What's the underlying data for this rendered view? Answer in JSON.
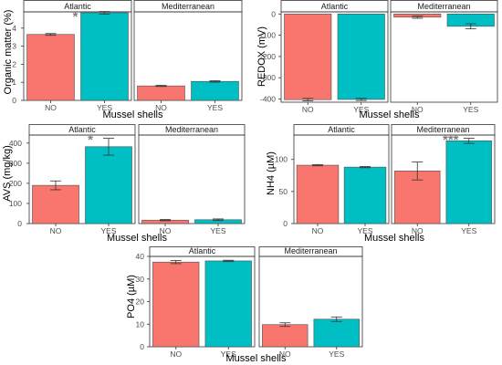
{
  "figure": {
    "colors": {
      "NO": "#F8766D",
      "YES": "#00BFC4",
      "panel_border": "#333333",
      "strip_fill": "#ffffff",
      "errorbar": "#333333",
      "significance": "#7f7f7f"
    }
  },
  "chart_data": [
    {
      "id": "organic-matter",
      "type": "bar",
      "ylabel": "Organic matter (%)",
      "xlabel": "Mussel shells",
      "ylim": [
        0,
        4.9
      ],
      "yticks": [
        0,
        1,
        2,
        3,
        4
      ],
      "categories": [
        "NO",
        "YES"
      ],
      "facets": [
        {
          "name": "Atlantic",
          "values": [
            3.65,
            4.85
          ],
          "errors": [
            0.05,
            0.07
          ],
          "significance": "*"
        },
        {
          "name": "Mediterranean",
          "values": [
            0.8,
            1.05
          ],
          "errors": [
            0.03,
            0.04
          ],
          "significance": ""
        }
      ],
      "grid": false
    },
    {
      "id": "redox",
      "type": "bar",
      "ylabel": "REDOX (mV)",
      "xlabel": "Mussel shells",
      "ylim": [
        -415,
        10
      ],
      "yticks": [
        0,
        -100,
        -200,
        -300,
        -400
      ],
      "categories": [
        "NO",
        "YES"
      ],
      "facets": [
        {
          "name": "Atlantic",
          "values": [
            -403,
            -402
          ],
          "errors": [
            6,
            5
          ],
          "significance": ""
        },
        {
          "name": "Mediterranean",
          "values": [
            -15,
            -58
          ],
          "errors": [
            5,
            12
          ],
          "significance": ""
        }
      ],
      "grid": false
    },
    {
      "id": "avs",
      "type": "bar",
      "ylabel": "AVS (mg/kg)",
      "xlabel": "Mussel shells",
      "ylim": [
        0,
        440
      ],
      "yticks": [
        0,
        100,
        200,
        300,
        400
      ],
      "categories": [
        "NO",
        "YES"
      ],
      "facets": [
        {
          "name": "Atlantic",
          "values": [
            190,
            382
          ],
          "errors": [
            22,
            42
          ],
          "significance": "*"
        },
        {
          "name": "Mediterranean",
          "values": [
            17,
            19
          ],
          "errors": [
            3,
            4
          ],
          "significance": ""
        }
      ],
      "grid": false
    },
    {
      "id": "nh4",
      "type": "bar",
      "ylabel": "NH4 (µM)",
      "xlabel": "Mussel shells",
      "ylim": [
        0,
        138
      ],
      "yticks": [
        0,
        50,
        100
      ],
      "categories": [
        "NO",
        "YES"
      ],
      "facets": [
        {
          "name": "Atlantic",
          "values": [
            91,
            88
          ],
          "errors": [
            1,
            1
          ],
          "significance": ""
        },
        {
          "name": "Mediterranean",
          "values": [
            82,
            129
          ],
          "errors": [
            14,
            4
          ],
          "significance": "***"
        }
      ],
      "grid": false
    },
    {
      "id": "po4",
      "type": "bar",
      "ylabel": "PO4 (µM)",
      "xlabel": "Mussel shells",
      "ylim": [
        0,
        40
      ],
      "yticks": [
        0,
        10,
        20,
        30,
        40
      ],
      "categories": [
        "NO",
        "YES"
      ],
      "facets": [
        {
          "name": "Atlantic",
          "values": [
            37.5,
            38
          ],
          "errors": [
            0.7,
            0.3
          ],
          "significance": ""
        },
        {
          "name": "Mediterranean",
          "values": [
            9.8,
            12.2
          ],
          "errors": [
            0.8,
            1.0
          ],
          "significance": ""
        }
      ],
      "grid": false
    }
  ]
}
